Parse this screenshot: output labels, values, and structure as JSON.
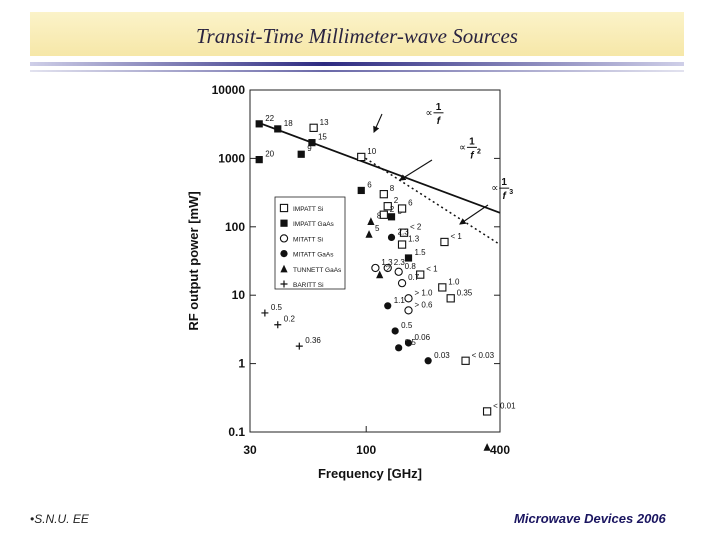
{
  "slide": {
    "title": "Transit-Time Millimeter-wave Sources",
    "footer_left": "S.N.U. EE",
    "footer_right": "Microwave Devices 2006",
    "accent_color": "#2d2a80"
  },
  "chart_data": {
    "type": "scatter",
    "title": "",
    "xlabel": "Frequency  [GHz]",
    "ylabel": "RF output power  [mW]",
    "x_scale": "log",
    "y_scale": "log",
    "xlim": [
      30,
      400
    ],
    "ylim": [
      0.1,
      10000
    ],
    "x_ticks": [
      30,
      100,
      400
    ],
    "y_ticks": [
      10000,
      1000,
      100,
      10,
      1,
      0.1
    ],
    "x_tick_labels": [
      "30",
      "100",
      "400"
    ],
    "y_tick_labels": [
      "10000",
      "1000",
      "100",
      "10",
      "1",
      "0.1"
    ],
    "legend": {
      "placement": "center-left",
      "entries": [
        {
          "label": "IMPATT Si",
          "marker": "square-open"
        },
        {
          "label": "IMPATT GaAs",
          "marker": "square-filled"
        },
        {
          "label": "MITATT Si",
          "marker": "circle-open"
        },
        {
          "label": "MITATT GaAs",
          "marker": "circle-filled"
        },
        {
          "label": "TUNNETT GaAs",
          "marker": "triangle-filled"
        },
        {
          "label": "BARITT Si",
          "marker": "plus"
        }
      ]
    },
    "lines": [
      {
        "label": "∝ 1/f",
        "style": "solid",
        "points": [
          [
            33,
            3300
          ],
          [
            400,
            160
          ]
        ]
      },
      {
        "label": "∝ 1/f²",
        "style": "dotted",
        "points": [
          [
            95,
            1100
          ],
          [
            400,
            55
          ]
        ]
      }
    ],
    "annotations": [
      {
        "text": "∝",
        "frac_num": "1",
        "frac_den": "f",
        "exp": "",
        "x": 205,
        "y": 4800
      },
      {
        "text": "∝",
        "frac_num": "1",
        "frac_den": "f",
        "exp": "2",
        "x": 290,
        "y": 1500
      },
      {
        "text": "∝",
        "frac_num": "1",
        "frac_den": "f",
        "exp": "3",
        "x": 405,
        "y": 380
      }
    ],
    "series": [
      {
        "marker": "square-filled",
        "points": [
          {
            "x": 33,
            "y": 3200,
            "label": "22"
          },
          {
            "x": 40,
            "y": 2700,
            "label": "18"
          },
          {
            "x": 57,
            "y": 1700,
            "label": "15"
          },
          {
            "x": 51,
            "y": 1150,
            "label": "9"
          },
          {
            "x": 33,
            "y": 960,
            "label": "20"
          },
          {
            "x": 95,
            "y": 340,
            "label": "6"
          },
          {
            "x": 130,
            "y": 140,
            "label": "5"
          },
          {
            "x": 155,
            "y": 35,
            "label": "1.5"
          }
        ]
      },
      {
        "marker": "square-open",
        "points": [
          {
            "x": 58,
            "y": 2800,
            "label": "13"
          },
          {
            "x": 95,
            "y": 1050,
            "label": "10"
          },
          {
            "x": 120,
            "y": 300,
            "label": "8"
          },
          {
            "x": 145,
            "y": 185,
            "label": "6"
          },
          {
            "x": 125,
            "y": 200,
            "label": "2"
          },
          {
            "x": 120,
            "y": 150,
            "label": "2"
          },
          {
            "x": 148,
            "y": 82,
            "label": "< 2"
          },
          {
            "x": 145,
            "y": 55,
            "label": "1.3"
          },
          {
            "x": 225,
            "y": 60,
            "label": "< 1"
          },
          {
            "x": 175,
            "y": 20,
            "label": "< 1"
          },
          {
            "x": 220,
            "y": 13,
            "label": "1.0"
          },
          {
            "x": 240,
            "y": 9,
            "label": "0.35"
          },
          {
            "x": 280,
            "y": 1.1,
            "label": "< 0.03"
          },
          {
            "x": 350,
            "y": 0.2,
            "label": "< 0.01"
          }
        ]
      },
      {
        "marker": "circle-open",
        "points": [
          {
            "x": 110,
            "y": 25,
            "label": "1.3"
          },
          {
            "x": 125,
            "y": 25,
            "label": "2.3"
          },
          {
            "x": 140,
            "y": 22,
            "label": "0.8"
          },
          {
            "x": 145,
            "y": 15,
            "label": "0.7"
          },
          {
            "x": 155,
            "y": 9,
            "label": "> 1.0"
          },
          {
            "x": 155,
            "y": 6,
            "label": "> 0.6"
          }
        ]
      },
      {
        "marker": "circle-filled",
        "points": [
          {
            "x": 130,
            "y": 70,
            "label": "2.3"
          },
          {
            "x": 125,
            "y": 7,
            "label": "1.1"
          },
          {
            "x": 135,
            "y": 3,
            "label": "0.5"
          },
          {
            "x": 155,
            "y": 2,
            "label": "0.06"
          },
          {
            "x": 140,
            "y": 1.7,
            "label": "0.5"
          },
          {
            "x": 190,
            "y": 1.1,
            "label": "0.03"
          }
        ]
      },
      {
        "marker": "triangle-filled",
        "points": [
          {
            "x": 105,
            "y": 120,
            "label": "8"
          },
          {
            "x": 103,
            "y": 78,
            "label": "5"
          },
          {
            "x": 115,
            "y": 20,
            "label": "2"
          },
          {
            "x": 350,
            "y": 0.06,
            "label": ""
          }
        ]
      },
      {
        "marker": "plus",
        "points": [
          {
            "x": 35,
            "y": 5.5,
            "label": "0.5"
          },
          {
            "x": 40,
            "y": 3.7,
            "label": "0.2"
          },
          {
            "x": 50,
            "y": 1.8,
            "label": "0.36"
          }
        ]
      }
    ]
  }
}
